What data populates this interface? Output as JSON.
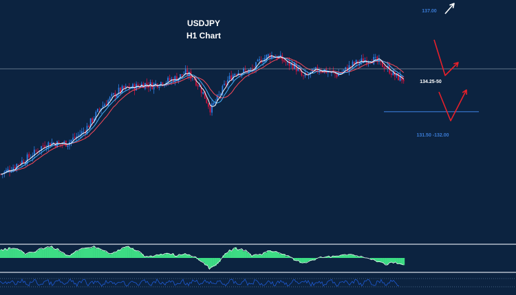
{
  "chart_data": {
    "type": "line",
    "title": "USDJPY",
    "subtitle": "H1 Chart",
    "xlabel": "",
    "ylabel": "",
    "ylim": [
      125.5,
      137.8
    ],
    "grid": false,
    "legend": "none",
    "colors": {
      "background": "#0c2340",
      "up_candle": "#2f7fe6",
      "down_candle": "#d3123d",
      "fast_ma": "#ffffff",
      "mid_ma": "#47b4ff",
      "slow_ma": "#ff4a5a",
      "oscillator_fill": "#3ddc84",
      "oscillator_line": "#ffffff",
      "signal_line": "#1e5bd6",
      "level_line": "#3a7bd5",
      "divider": "#8a97a8",
      "red_arrow": "#e8202a",
      "white_arrow": "#ffffff"
    },
    "series": [
      {
        "values": [
          127.6,
          127.9,
          128.3,
          128.6,
          129.0,
          129.5,
          129.7,
          129.6,
          129.7,
          130.1,
          130.5,
          131.3,
          132.1,
          132.6,
          133.1,
          133.3,
          133.4,
          133.6,
          133.5,
          133.7,
          133.8,
          134.0,
          134.3,
          134.0,
          133.1,
          131.9,
          132.8,
          133.8,
          134.4,
          134.4,
          134.5,
          135.2,
          135.5,
          135.4,
          135.0,
          134.8,
          134.0,
          134.3,
          134.6,
          134.4,
          134.2,
          134.5,
          134.9,
          135.1,
          135.3,
          135.0,
          134.7,
          134.1,
          133.9
        ]
      }
    ],
    "levels": [
      {
        "name": "current_price",
        "value": 134.6
      },
      {
        "name": "support_1",
        "value": 134.25
      },
      {
        "name": "support_2",
        "value": 131.75
      }
    ],
    "annotations": [
      {
        "text": "137.00",
        "value": 137.0
      },
      {
        "text": "134.25-50",
        "value": 134.25
      },
      {
        "text": "131.50 -132.00",
        "value": 131.75
      }
    ],
    "oscillator": {
      "values": [
        0.6,
        0.8,
        0.7,
        0.3,
        0.5,
        0.8,
        0.9,
        0.6,
        0.2,
        0.5,
        0.8,
        0.9,
        0.7,
        0.3,
        0.6,
        0.9,
        0.7,
        0.2,
        0.1,
        0.3,
        0.4,
        0.2,
        0.4,
        0.1,
        -0.3,
        -0.9,
        -0.3,
        0.5,
        0.8,
        0.6,
        0.2,
        0.3,
        0.6,
        0.5,
        0.2,
        -0.2,
        -0.4,
        -0.2,
        0.0,
        0.1,
        0.2,
        0.3,
        0.2,
        0.1,
        -0.1,
        -0.3,
        -0.5,
        -0.4,
        -0.6
      ]
    }
  }
}
